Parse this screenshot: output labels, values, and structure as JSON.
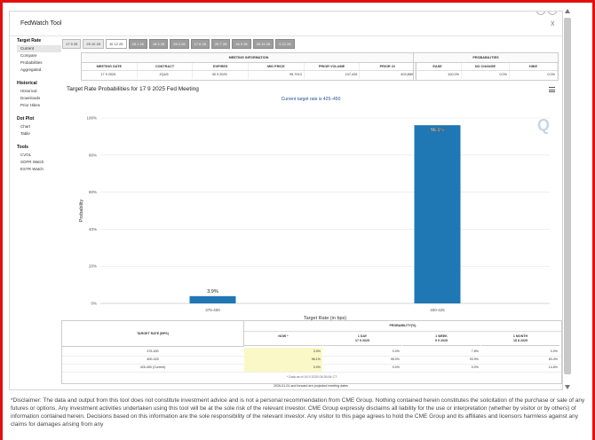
{
  "window": {
    "title": "FedWatch Tool"
  },
  "sidebar": {
    "groups": [
      {
        "heading": "Target Rate",
        "items": [
          "Current",
          "Compare",
          "Probabilities",
          "Aggregated"
        ]
      },
      {
        "heading": "Historical",
        "items": [
          "Historical",
          "Downloads",
          "Prior Hikes"
        ]
      },
      {
        "heading": "Dot Plot",
        "items": [
          "Chart",
          "Table"
        ]
      },
      {
        "heading": "Tools",
        "items": [
          "CVOL",
          "SOFR Watch",
          "ESTR Watch"
        ]
      }
    ]
  },
  "date_tabs": [
    "17 9 25",
    "29 10 25",
    "10 12 25",
    "28 1 26",
    "18 3 26",
    "29 4 26",
    "17 6 26",
    "29 7 26",
    "16 9 26",
    "28 10 26",
    "9 12 26"
  ],
  "meeting_info": {
    "heading": "MEETING INFORMATION",
    "columns": [
      "MEETING DATE",
      "CONTRACT",
      "EXPIRES",
      "MID PRICE",
      "PRIOR VOLUME",
      "PRIOR OI"
    ],
    "values": [
      "17 9 2025",
      "ZQU5",
      "30 9 2025",
      "95.7913",
      "107,426",
      "403,889"
    ]
  },
  "probabilities_summary": {
    "heading": "PROBABILITIES",
    "columns": [
      "EASE",
      "NO CHANGE",
      "HIKE"
    ],
    "values": [
      "100.0%",
      "0.0%",
      "0.0%"
    ]
  },
  "chart": {
    "title": "Target Rate Probabilities for 17 9 2025 Fed Meeting",
    "subtitle": "Current target rate is 425–450"
  },
  "chart_data": {
    "type": "bar",
    "categories": [
      "375-400",
      "400-425"
    ],
    "values": [
      3.9,
      96.1
    ],
    "data_labels": [
      "3.9%",
      "96.1%"
    ],
    "xlabel": "Target Rate (in bps)",
    "ylabel": "Probability",
    "ylim": [
      0,
      100
    ],
    "yticks": [
      "0%",
      "20%",
      "40%",
      "60%",
      "80%",
      "100%"
    ],
    "bar_color": "#1f77b4",
    "grid": true
  },
  "prob_table": {
    "left_heading": "TARGET RATE (BPS)",
    "prob_heading": "PROBABILITY(%)",
    "col_now": "NOW *",
    "col_1day": [
      "1 DAY",
      "17 9 2025"
    ],
    "col_1week": [
      "1 WEEK",
      "9 9 2025"
    ],
    "col_1month": [
      "1 MONTH",
      "15 8 2025"
    ],
    "rows": [
      {
        "rate": "375-400",
        "now": "3.9%",
        "day": "0.0%",
        "week": "7.8%",
        "month": "0.0%"
      },
      {
        "rate": "400-425",
        "now": "96.1%",
        "day": "95.0%",
        "week": "93.9%",
        "month": "83.4%"
      },
      {
        "rate": "425-450 (Current)",
        "now": "0.0%",
        "day": "0.0%",
        "week": "0.0%",
        "month": "14.6%"
      }
    ],
    "data_note": "* Data as of 16 9 2025 05:36:54 CT",
    "footer": "2026-01-01 and forward are projected meeting dates"
  },
  "disclaimer": "*Disclaimer: The data and output from this tool does not constitute investment advice and is not a personal recommendation from CME Group. Nothing contained herein constitutes the solicitation of the purchase or sale of any futures or options. Any investment activities undertaken using this tool will be at the sole risk of the relevant investor. CME Group expressly disclaims all liability for the use or interpretation (whether by visitor or by others) of information contained herein. Decisions based on this information are the sole responsibility of the relevant investor. Any visitor to this page agrees to hold the CME Group and its affiliates and licensors harmless against any claims for damages arising from any"
}
